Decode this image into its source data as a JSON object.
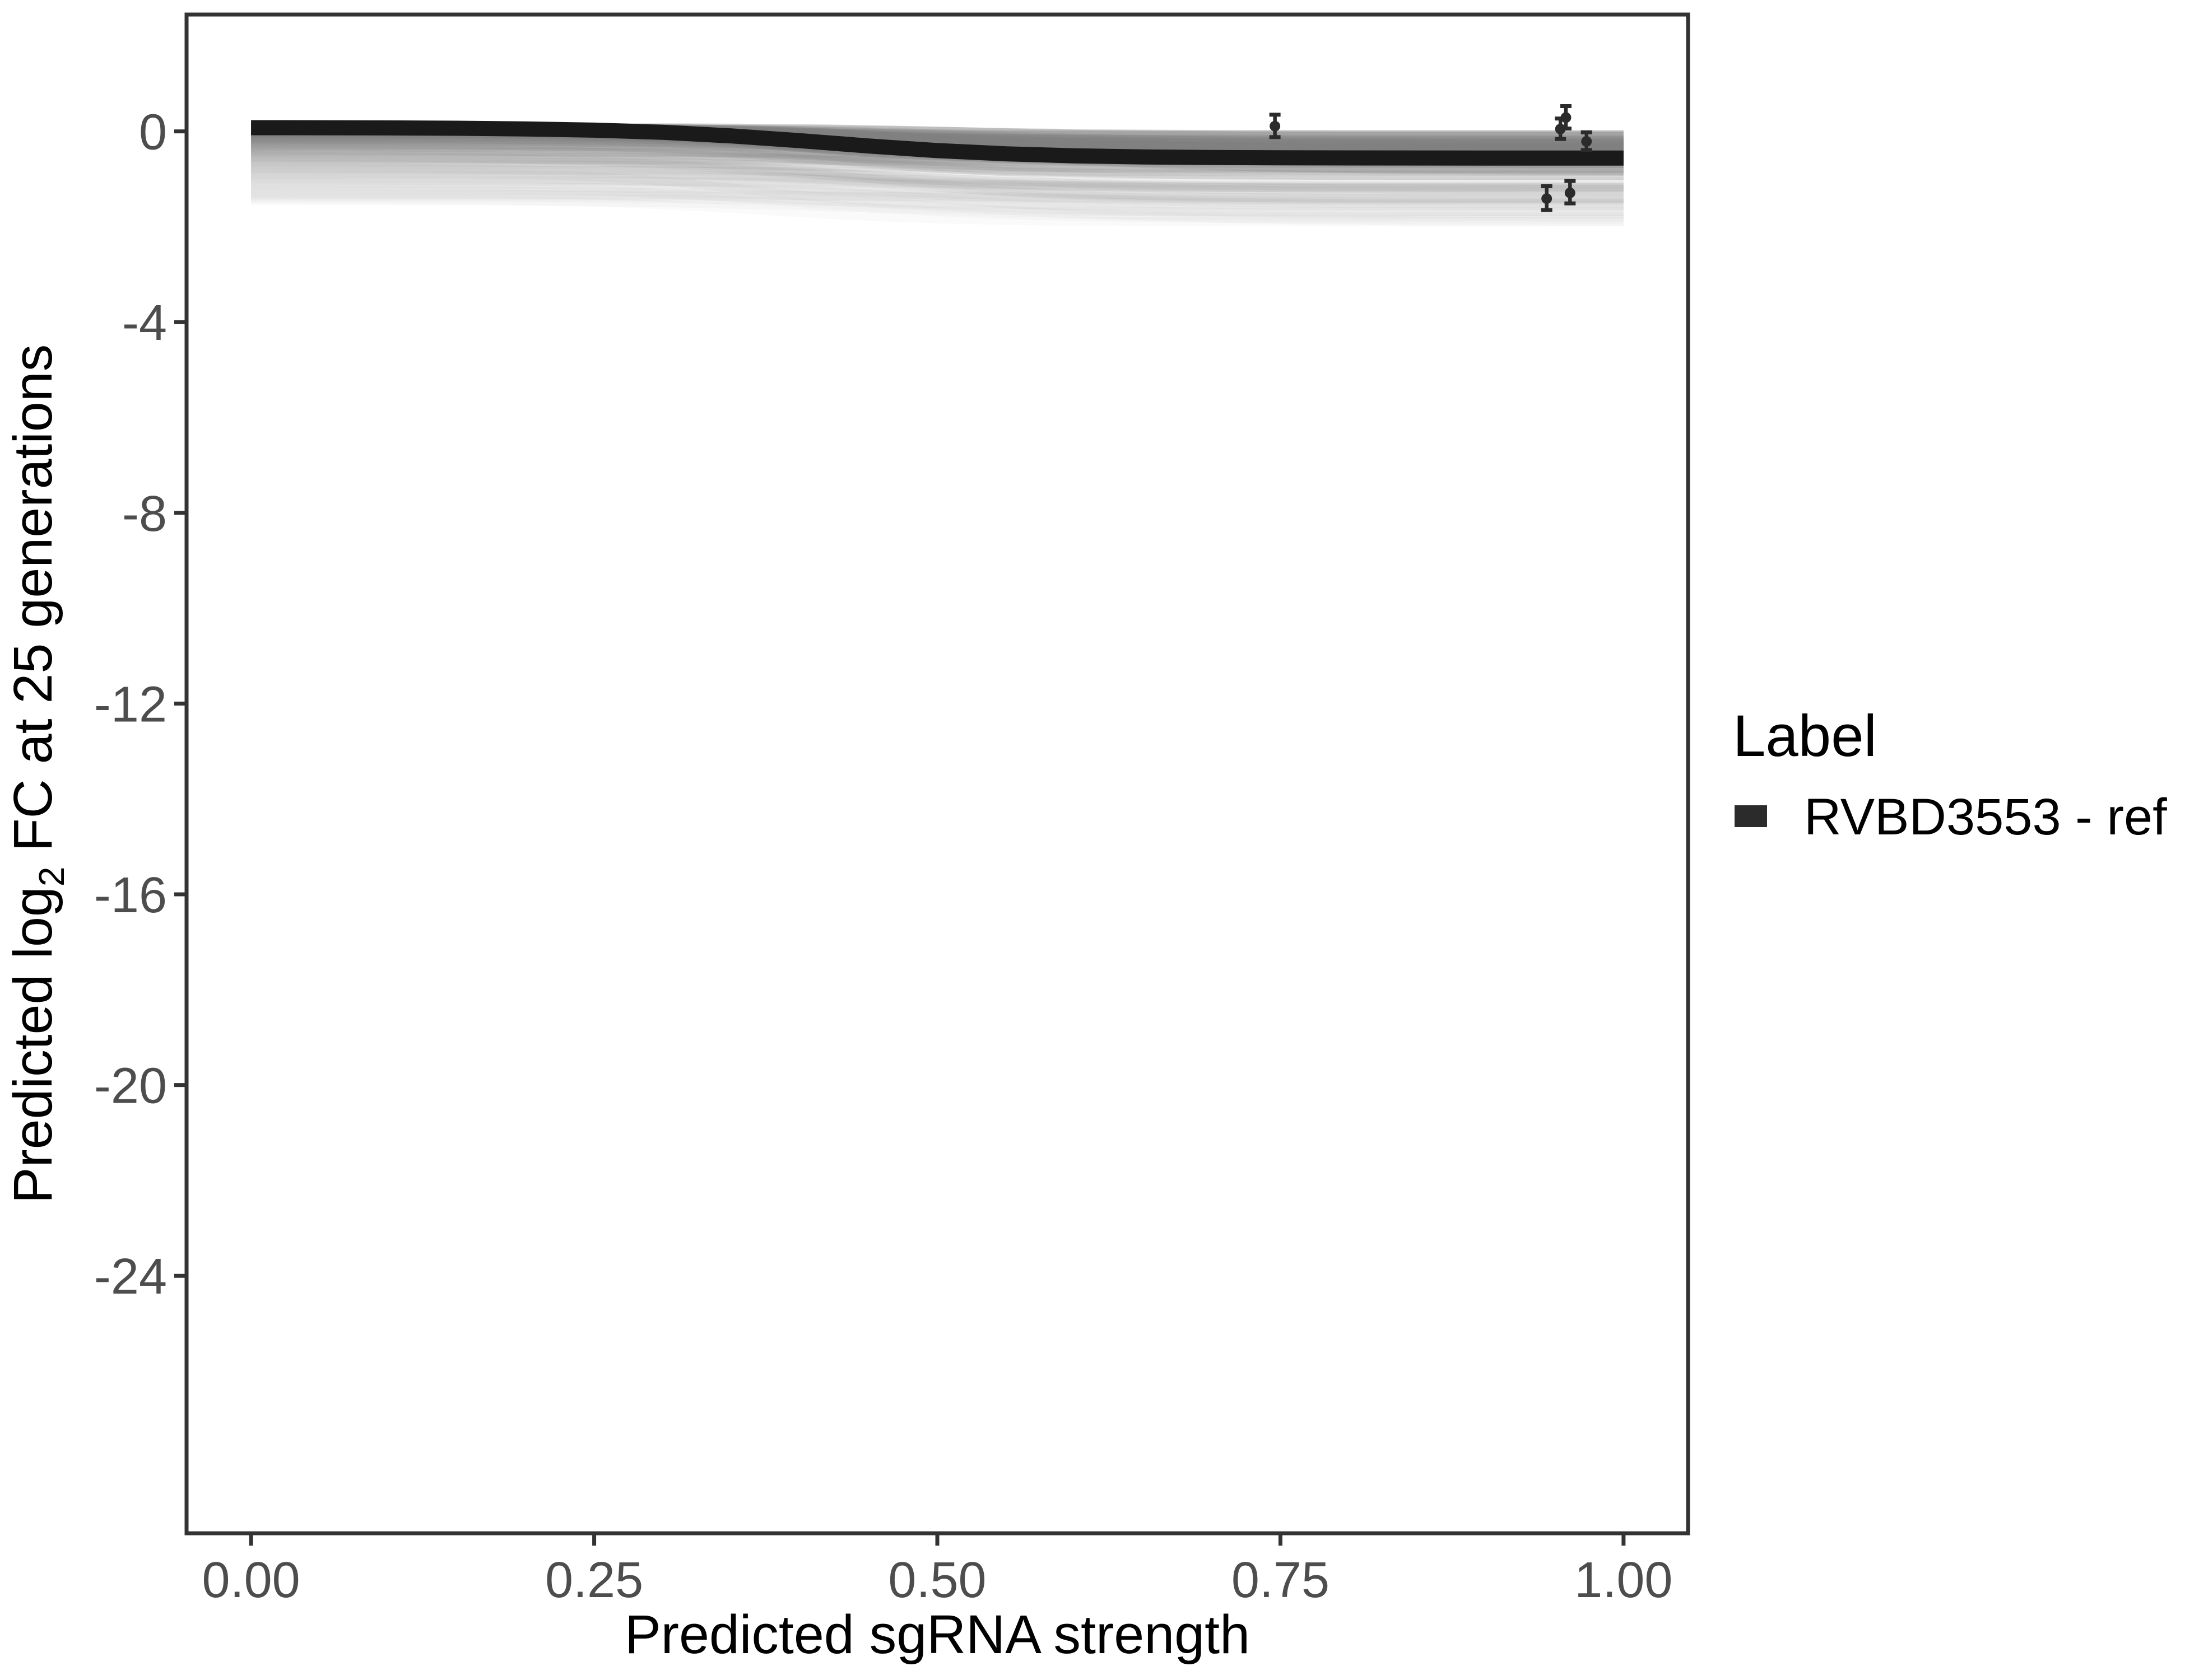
{
  "axes": {
    "x_title": "Predicted sgRNA strength",
    "y_title": {
      "prefix": "Predicted  log",
      "sub": "2",
      "suffix": " FC at 25 generations"
    }
  },
  "legend": {
    "title": "Label",
    "entries": [
      {
        "label": "RVBD3553 - ref",
        "swatch_color": "#2b2b2b"
      }
    ]
  },
  "chart_data": {
    "type": "line",
    "title": "",
    "xlabel": "Predicted sgRNA strength",
    "ylabel": "Predicted log2 FC at 25 generations",
    "xlim": [
      -0.047,
      1.047
    ],
    "ylim": [
      -29.4,
      2.45
    ],
    "grid": false,
    "legend_position": "right",
    "x_ticks": {
      "values": [
        0,
        0.25,
        0.5,
        0.75,
        1.0
      ],
      "labels": [
        "0.00",
        "0.25",
        "0.50",
        "0.75",
        "1.00"
      ]
    },
    "y_ticks": {
      "values": [
        0,
        -4,
        -8,
        -12,
        -16,
        -20,
        -24
      ],
      "labels": [
        "0",
        "-4",
        "-8",
        "-12",
        "-16",
        "-20",
        "-24"
      ]
    },
    "series": [
      {
        "name": "RVBD3553 - ref",
        "role": "reference fitted sigmoid curve",
        "color": "#1a1a1a",
        "stroke_width_px": 27,
        "x": [
          0,
          0.05,
          0.1,
          0.15,
          0.2,
          0.25,
          0.3,
          0.35,
          0.4,
          0.45,
          0.5,
          0.55,
          0.6,
          0.65,
          0.7,
          0.75,
          0.8,
          0.85,
          0.9,
          0.95,
          1.0
        ],
        "y": [
          0.078,
          0.076,
          0.073,
          0.066,
          0.052,
          0.026,
          -0.02,
          -0.095,
          -0.195,
          -0.306,
          -0.403,
          -0.471,
          -0.512,
          -0.535,
          -0.548,
          -0.554,
          -0.557,
          -0.558,
          -0.559,
          -0.56,
          -0.56
        ]
      }
    ],
    "ensemble_band": {
      "description": "band of ~100 translucent gray posterior-sample sigmoid curves spanning ~+0.08 to ~-1.45 at x=0 and ~+0.05 to ~-1.9 at x=1, transition near x=0.36-0.54",
      "count": 100,
      "left_value_top": 0.08,
      "left_value_bottom": -1.45,
      "drop_range": [
        0.02,
        0.7
      ],
      "right_value_min": -1.9,
      "midpoint_range": [
        0.36,
        0.54
      ],
      "steepness_range": [
        9,
        19
      ],
      "color": "#808080",
      "seed": 7
    },
    "points": [
      {
        "x": 0.746,
        "y": 0.11,
        "ymin": -0.12,
        "ymax": 0.35
      },
      {
        "x": 0.954,
        "y": 0.05,
        "ymin": -0.16,
        "ymax": 0.27
      },
      {
        "x": 0.958,
        "y": 0.29,
        "ymin": 0.06,
        "ymax": 0.53
      },
      {
        "x": 0.973,
        "y": -0.21,
        "ymin": -0.39,
        "ymax": -0.02
      },
      {
        "x": 0.944,
        "y": -1.41,
        "ymin": -1.65,
        "ymax": -1.15
      },
      {
        "x": 0.961,
        "y": -1.29,
        "ymin": -1.51,
        "ymax": -1.04
      }
    ],
    "style": {
      "panel_border": "#333333",
      "tick_color": "#333333",
      "tick_label_color": "#4d4d4d",
      "point_color": "#2b2b2b",
      "background": "#ffffff"
    }
  }
}
